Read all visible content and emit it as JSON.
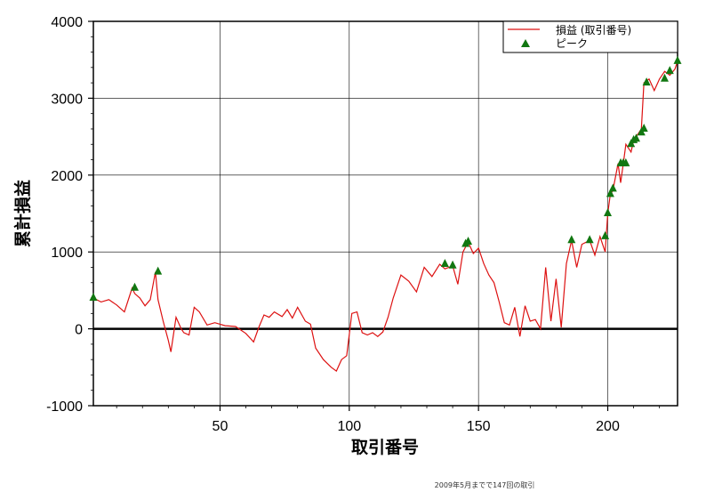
{
  "chart_data": {
    "type": "line",
    "xlabel": "取引番号",
    "ylabel": "累計損益",
    "xlim": [
      1,
      227
    ],
    "ylim": [
      -1000,
      4000
    ],
    "x_ticks": [
      50,
      100,
      150,
      200
    ],
    "y_ticks": [
      -1000,
      0,
      1000,
      2000,
      3000,
      4000
    ],
    "x_tick_labels": [
      "50",
      "100",
      "150",
      "200"
    ],
    "y_tick_labels": [
      "-1000",
      "0",
      "1000",
      "2000",
      "3000",
      "4000"
    ],
    "grid": true,
    "legend_position": "top-right",
    "legend": {
      "line_label": "損益 (取引番号)",
      "marker_label": "ピーク"
    },
    "footnote": "2009年5月までで147回の取引",
    "colors": {
      "line": "#dd1111",
      "peak_marker": "#117711",
      "zero_line": "#000000",
      "grid": "#000000"
    },
    "series": [
      {
        "name": "損益 (取引番号)",
        "x": [
          1,
          4,
          7,
          10,
          13,
          16,
          17,
          19,
          21,
          23,
          25,
          26,
          28,
          30,
          31,
          33,
          35,
          36,
          38,
          40,
          42,
          45,
          48,
          52,
          56,
          60,
          63,
          65,
          67,
          69,
          71,
          74,
          76,
          78,
          80,
          83,
          85,
          87,
          90,
          93,
          95,
          97,
          99,
          101,
          103,
          105,
          107,
          109,
          111,
          113,
          115,
          117,
          120,
          123,
          126,
          129,
          132,
          135,
          137,
          140,
          142,
          144,
          146,
          148,
          150,
          152,
          154,
          156,
          158,
          160,
          162,
          164,
          166,
          168,
          170,
          172,
          174,
          176,
          178,
          180,
          182,
          184,
          186,
          188,
          190,
          193,
          195,
          197,
          199,
          200,
          201,
          202,
          204,
          205,
          206,
          207,
          209,
          210,
          212,
          213,
          214,
          216,
          218,
          220,
          222,
          224,
          226,
          227
        ],
        "y": [
          400,
          350,
          380,
          310,
          220,
          530,
          460,
          400,
          300,
          380,
          740,
          380,
          100,
          -150,
          -300,
          150,
          0,
          -50,
          -80,
          280,
          220,
          50,
          80,
          40,
          30,
          -60,
          -170,
          20,
          180,
          150,
          220,
          160,
          250,
          140,
          280,
          100,
          60,
          -250,
          -400,
          -500,
          -550,
          -400,
          -350,
          200,
          220,
          -50,
          -80,
          -50,
          -100,
          -40,
          150,
          400,
          700,
          620,
          480,
          800,
          680,
          840,
          780,
          820,
          580,
          1000,
          1130,
          980,
          1050,
          850,
          700,
          600,
          350,
          80,
          50,
          280,
          -100,
          300,
          100,
          120,
          0,
          800,
          100,
          650,
          20,
          850,
          1150,
          800,
          1100,
          1150,
          960,
          1200,
          1000,
          1500,
          1750,
          1800,
          2150,
          1900,
          2150,
          2400,
          2300,
          2450,
          2550,
          2600,
          3200,
          3250,
          3100,
          3250,
          3350,
          3300,
          3380,
          3480
        ]
      },
      {
        "name": "ピーク",
        "x": [
          1,
          17,
          26,
          137,
          140,
          145,
          146,
          186,
          193,
          199,
          200,
          201,
          202,
          205,
          206,
          207,
          209,
          210,
          211,
          213,
          214,
          215,
          222,
          224,
          227
        ],
        "y": [
          400,
          530,
          740,
          840,
          820,
          1100,
          1130,
          1150,
          1150,
          1200,
          1500,
          1750,
          1820,
          2150,
          2150,
          2150,
          2400,
          2450,
          2470,
          2550,
          2600,
          3200,
          3250,
          3350,
          3480
        ]
      }
    ]
  }
}
